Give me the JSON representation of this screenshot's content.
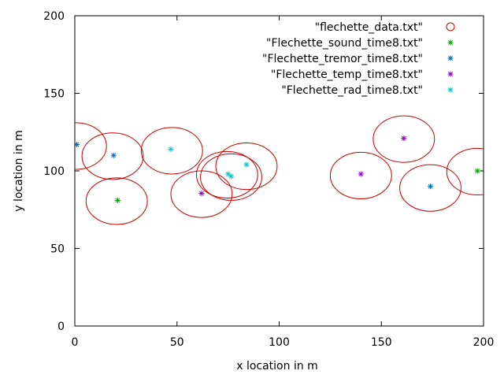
{
  "chart_data": {
    "type": "scatter",
    "xlabel": "x location in m",
    "ylabel": "y location in m",
    "xlim": [
      0,
      200
    ],
    "ylim": [
      0,
      200
    ],
    "x_ticks": [
      0,
      50,
      100,
      150,
      200
    ],
    "y_ticks": [
      0,
      50,
      100,
      150,
      200
    ],
    "x_tick_labels": [
      "0",
      "50",
      "100",
      "150",
      "200"
    ],
    "y_tick_labels": [
      "0",
      "50",
      "100",
      "150",
      "200"
    ],
    "grid": false,
    "legend_position": "top-right",
    "circle_radius": 15,
    "series": [
      {
        "name": "\"flechette_data.txt\"",
        "marker": "circle",
        "color": "#cc0000",
        "points": [
          [
            0.5,
            116
          ],
          [
            18.5,
            109.5
          ],
          [
            20.5,
            80.5
          ],
          [
            47.5,
            113
          ],
          [
            62,
            85
          ],
          [
            74.5,
            97.5
          ],
          [
            76.5,
            96
          ],
          [
            84,
            103
          ],
          [
            140,
            97
          ],
          [
            161,
            120.5
          ],
          [
            174,
            89
          ],
          [
            197,
            99.5
          ]
        ]
      },
      {
        "name": "\"Flechette_sound_time8.txt\"",
        "marker": "star",
        "color": "#00aa00",
        "points": [
          [
            21,
            81
          ],
          [
            197,
            100
          ]
        ]
      },
      {
        "name": "\"Flechette_tremor_time8.txt\"",
        "marker": "star",
        "color": "#0070c0",
        "points": [
          [
            1,
            117
          ],
          [
            19,
            110
          ],
          [
            174,
            90
          ]
        ]
      },
      {
        "name": "\"Flechette_temp_time8.txt\"",
        "marker": "star",
        "color": "#9400d3",
        "points": [
          [
            62,
            85.5
          ],
          [
            140,
            98
          ],
          [
            161,
            121
          ]
        ]
      },
      {
        "name": "\"Flechette_rad_time8.txt\"",
        "marker": "star",
        "color": "#00cccc",
        "points": [
          [
            47,
            114
          ],
          [
            75,
            98
          ],
          [
            76.5,
            96.5
          ],
          [
            84,
            104
          ]
        ]
      }
    ]
  }
}
